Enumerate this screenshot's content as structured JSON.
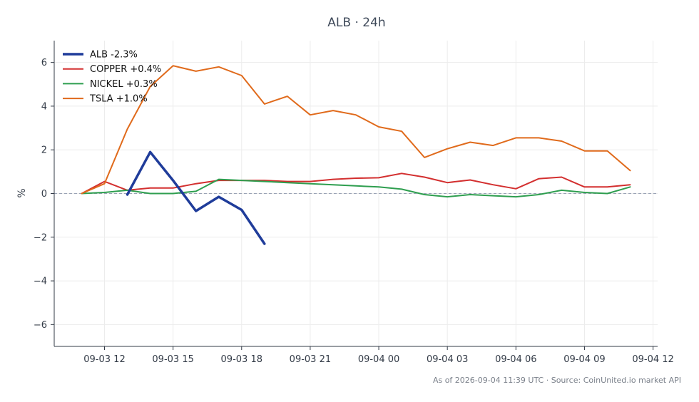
{
  "chart_data": {
    "type": "line",
    "title": "ALB · 24h",
    "xlabel": "",
    "ylabel": "%",
    "ylim": [
      -7,
      7
    ],
    "yticks": [
      -6,
      -4,
      -2,
      0,
      2,
      4,
      6
    ],
    "ytick_labels": [
      "−6",
      "−4",
      "−2",
      "0",
      "2",
      "4",
      "6"
    ],
    "x_unit": "hours",
    "xlim": [
      9.8,
      36.2
    ],
    "xticks": [
      12,
      15,
      18,
      21,
      24,
      27,
      30,
      33,
      36
    ],
    "xtick_labels": [
      "09-03 12",
      "09-03 15",
      "09-03 18",
      "09-03 21",
      "09-04 00",
      "09-04 03",
      "09-04 06",
      "09-04 09",
      "09-04 12"
    ],
    "zero_line": true,
    "grid": true,
    "legend_position": "top-left",
    "series": [
      {
        "name": "ALB -2.3%",
        "color": "#1f3c9a",
        "emphasis": true,
        "x": [
          13,
          14,
          15,
          16,
          17,
          18,
          19
        ],
        "y": [
          -0.05,
          1.9,
          0.6,
          -0.8,
          -0.15,
          -0.75,
          -2.3
        ]
      },
      {
        "name": "COPPER +0.4%",
        "color": "#d32f2f",
        "emphasis": false,
        "x": [
          11,
          12,
          13,
          14,
          15,
          16,
          17,
          18,
          19,
          20,
          21,
          22,
          23,
          24,
          25,
          26,
          27,
          28,
          29,
          30,
          31,
          32,
          33,
          34,
          35
        ],
        "y": [
          0.0,
          0.55,
          0.15,
          0.25,
          0.25,
          0.45,
          0.6,
          0.6,
          0.6,
          0.55,
          0.55,
          0.65,
          0.7,
          0.72,
          0.92,
          0.75,
          0.5,
          0.62,
          0.4,
          0.22,
          0.68,
          0.75,
          0.3,
          0.3,
          0.4
        ]
      },
      {
        "name": "NICKEL +0.3%",
        "color": "#2e9e4f",
        "emphasis": false,
        "x": [
          11,
          12,
          13,
          14,
          15,
          16,
          17,
          18,
          19,
          20,
          21,
          22,
          23,
          24,
          25,
          26,
          27,
          28,
          29,
          30,
          31,
          32,
          33,
          34,
          35
        ],
        "y": [
          0.0,
          0.05,
          0.15,
          0.0,
          0.0,
          0.1,
          0.65,
          0.6,
          0.55,
          0.5,
          0.45,
          0.4,
          0.35,
          0.3,
          0.2,
          -0.05,
          -0.15,
          -0.05,
          -0.1,
          -0.15,
          -0.05,
          0.15,
          0.05,
          0.0,
          0.3
        ]
      },
      {
        "name": "TSLA +1.0%",
        "color": "#e06a1b",
        "emphasis": false,
        "x": [
          11,
          12,
          13,
          14,
          15,
          16,
          17,
          18,
          19,
          20,
          21,
          22,
          23,
          24,
          25,
          26,
          27,
          28,
          29,
          30,
          31,
          32,
          33,
          34,
          35
        ],
        "y": [
          0.0,
          0.45,
          2.95,
          4.9,
          5.85,
          5.6,
          5.8,
          5.4,
          4.1,
          4.45,
          3.6,
          3.8,
          3.6,
          3.05,
          2.85,
          1.65,
          2.05,
          2.35,
          2.2,
          2.55,
          2.55,
          2.4,
          1.95,
          1.95,
          1.05
        ]
      }
    ]
  },
  "footer": {
    "text": "As of 2026-09-04 11:39 UTC · Source: CoinUnited.io market API"
  }
}
